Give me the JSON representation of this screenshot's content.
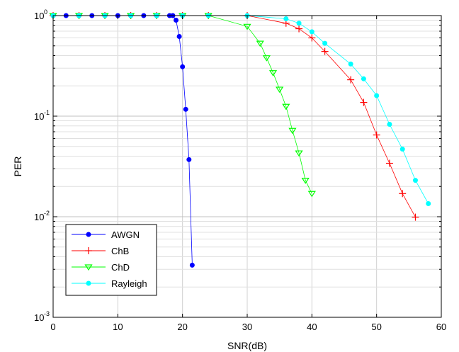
{
  "chart_data": {
    "type": "line",
    "xscale": "linear",
    "yscale": "log",
    "xlim": [
      0,
      60
    ],
    "ylim": [
      0.001,
      1
    ],
    "xticks": [
      0,
      10,
      20,
      30,
      40,
      50,
      60
    ],
    "yticks": [
      {
        "base": "10",
        "exp": "0",
        "value": 1
      },
      {
        "base": "10",
        "exp": "-1",
        "value": 0.1
      },
      {
        "base": "10",
        "exp": "-2",
        "value": 0.01
      },
      {
        "base": "10",
        "exp": "-3",
        "value": 0.001
      }
    ],
    "xlabel": "SNR(dB)",
    "ylabel": "PER",
    "grid": true,
    "legend_position": "bottom-left",
    "series": [
      {
        "name": "AWGN",
        "color": "#0000ff",
        "marker": "dot",
        "x": [
          0,
          2,
          4,
          6,
          8,
          10,
          12,
          14,
          16,
          18,
          18.5,
          19,
          19.5,
          20,
          20.5,
          21,
          21.5
        ],
        "y": [
          1,
          1,
          1,
          1,
          1,
          1,
          1,
          1,
          1,
          1,
          1,
          0.9,
          0.62,
          0.31,
          0.117,
          0.037,
          0.0033
        ]
      },
      {
        "name": "ChB",
        "color": "#ff0000",
        "marker": "plus",
        "x": [
          0,
          4,
          8,
          12,
          16,
          20,
          24,
          30,
          36,
          38,
          40,
          42,
          46,
          48,
          50,
          52,
          54,
          56
        ],
        "y": [
          1,
          1,
          1,
          1,
          1,
          1,
          1,
          1,
          0.84,
          0.74,
          0.6,
          0.44,
          0.23,
          0.137,
          0.065,
          0.034,
          0.017,
          0.0099
        ]
      },
      {
        "name": "ChD",
        "color": "#00ff00",
        "marker": "triangle-down",
        "x": [
          0,
          4,
          8,
          12,
          16,
          20,
          24,
          30,
          32,
          33,
          34,
          35,
          36,
          37,
          38,
          39,
          40
        ],
        "y": [
          1,
          1,
          1,
          1,
          1,
          1,
          1,
          0.78,
          0.53,
          0.38,
          0.27,
          0.185,
          0.125,
          0.072,
          0.043,
          0.023,
          0.017
        ]
      },
      {
        "name": "Rayleigh",
        "color": "#00ffff",
        "marker": "dot",
        "x": [
          0,
          4,
          8,
          12,
          16,
          20,
          24,
          30,
          36,
          38,
          40,
          42,
          46,
          48,
          50,
          52,
          54,
          56,
          58
        ],
        "y": [
          1,
          1,
          1,
          1,
          1,
          1,
          1,
          1,
          0.93,
          0.84,
          0.69,
          0.53,
          0.33,
          0.235,
          0.16,
          0.083,
          0.047,
          0.023,
          0.0135
        ]
      }
    ]
  }
}
